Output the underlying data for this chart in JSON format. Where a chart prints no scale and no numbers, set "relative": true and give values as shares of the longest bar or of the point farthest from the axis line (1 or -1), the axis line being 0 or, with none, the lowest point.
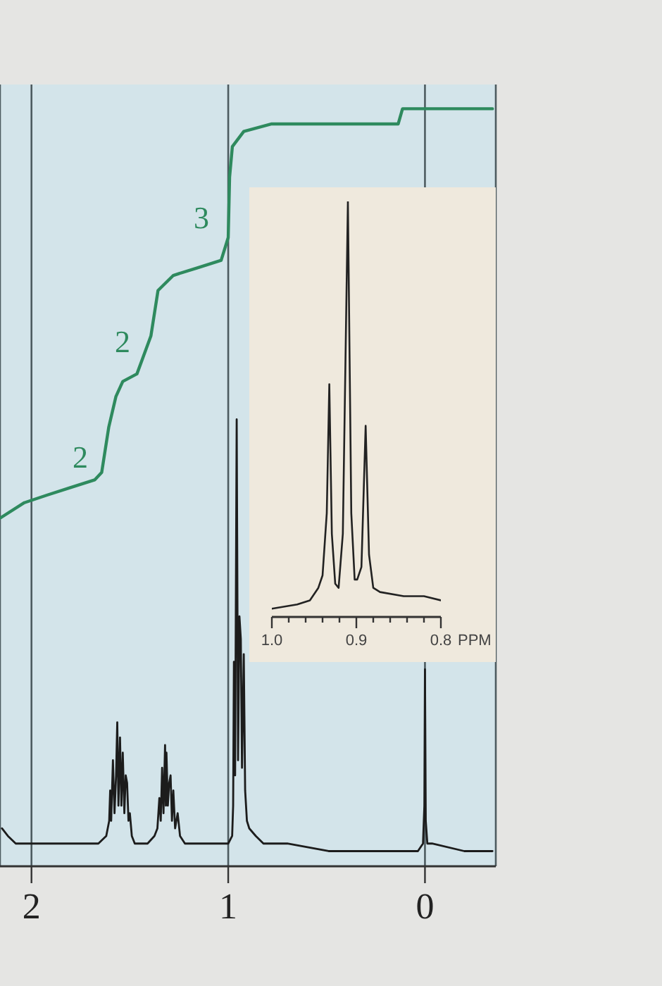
{
  "chart_data": [
    {
      "type": "line",
      "relative": true,
      "xlim": [
        2.16,
        -0.36
      ],
      "xticks": [
        2,
        1,
        0
      ],
      "grid": "x",
      "annotations": [
        "2",
        "2",
        "3"
      ],
      "series": [
        {
          "color": "#1c1c1c",
          "x": [
            2.15,
            2.12,
            2.08,
            2.0,
            1.8,
            1.66,
            1.62,
            1.605,
            1.6,
            1.595,
            1.586,
            1.578,
            1.57,
            1.564,
            1.558,
            1.55,
            1.543,
            1.536,
            1.528,
            1.521,
            1.514,
            1.507,
            1.5,
            1.49,
            1.475,
            1.443,
            1.41,
            1.375,
            1.36,
            1.35,
            1.343,
            1.336,
            1.329,
            1.321,
            1.317,
            1.314,
            1.307,
            1.3,
            1.293,
            1.286,
            1.279,
            1.27,
            1.257,
            1.245,
            1.22,
            1.15,
            1.086,
            1.0,
            0.98,
            0.975,
            0.971,
            0.965,
            0.957,
            0.95,
            0.943,
            0.936,
            0.93,
            0.921,
            0.914,
            0.905,
            0.893,
            0.86,
            0.821,
            0.7,
            0.49,
            0.2,
            0.036,
            0.01,
            0.003,
            0,
            -0.004,
            -0.012,
            -0.036,
            -0.2,
            -0.343
          ],
          "values": [
            0.05,
            0.04,
            0.03,
            0.03,
            0.03,
            0.03,
            0.04,
            0.06,
            0.1,
            0.06,
            0.14,
            0.07,
            0.12,
            0.19,
            0.08,
            0.17,
            0.08,
            0.15,
            0.07,
            0.12,
            0.11,
            0.06,
            0.07,
            0.04,
            0.03,
            0.03,
            0.03,
            0.04,
            0.05,
            0.09,
            0.06,
            0.13,
            0.07,
            0.16,
            0.08,
            0.15,
            0.08,
            0.11,
            0.12,
            0.06,
            0.1,
            0.05,
            0.07,
            0.04,
            0.03,
            0.03,
            0.03,
            0.03,
            0.04,
            0.08,
            0.27,
            0.12,
            0.59,
            0.14,
            0.33,
            0.3,
            0.13,
            0.28,
            0.1,
            0.06,
            0.05,
            0.04,
            0.03,
            0.03,
            0.02,
            0.02,
            0.02,
            0.03,
            0.08,
            0.26,
            0.06,
            0.03,
            0.03,
            0.02,
            0.02
          ]
        },
        {
          "color": "#2e8a5e",
          "x": [
            2.157,
            2.036,
            1.921,
            1.8,
            1.679,
            1.643,
            1.607,
            1.571,
            1.536,
            1.464,
            1.393,
            1.357,
            1.279,
            1.157,
            1.036,
            1.0,
            0.993,
            0.979,
            0.921,
            0.779,
            0.493,
            0.136,
            0.114,
            -0.343
          ],
          "values": [
            0.46,
            0.48,
            0.49,
            0.5,
            0.51,
            0.52,
            0.58,
            0.62,
            0.64,
            0.65,
            0.7,
            0.76,
            0.78,
            0.79,
            0.8,
            0.83,
            0.91,
            0.95,
            0.97,
            0.98,
            0.98,
            0.98,
            1.0,
            1.0
          ]
        }
      ]
    },
    {
      "type": "line",
      "relative": true,
      "xlim": [
        1.0,
        0.8
      ],
      "xlabel": "PPM",
      "xticks": [
        {
          "value": 1.0,
          "label": "1.0"
        },
        {
          "value": 0.98,
          "label": null
        },
        {
          "value": 0.96,
          "label": null
        },
        {
          "value": 0.94,
          "label": null
        },
        {
          "value": 0.92,
          "label": null
        },
        0.9,
        {
          "value": 0.88,
          "label": null
        },
        {
          "value": 0.86,
          "label": null
        },
        {
          "value": 0.84,
          "label": null
        },
        {
          "value": 0.82,
          "label": null
        },
        0.8
      ],
      "series": [
        {
          "color": "#222222",
          "x": [
            1.0,
            0.97,
            0.955,
            0.945,
            0.94,
            0.935,
            0.932,
            0.929,
            0.925,
            0.921,
            0.916,
            0.91,
            0.906,
            0.902,
            0.899,
            0.894,
            0.889,
            0.885,
            0.88,
            0.872,
            0.844,
            0.82,
            0.8
          ],
          "values": [
            0.02,
            0.03,
            0.04,
            0.07,
            0.1,
            0.25,
            0.56,
            0.2,
            0.08,
            0.07,
            0.2,
            1.0,
            0.25,
            0.09,
            0.09,
            0.12,
            0.46,
            0.15,
            0.07,
            0.06,
            0.05,
            0.05,
            0.04
          ]
        }
      ]
    }
  ]
}
